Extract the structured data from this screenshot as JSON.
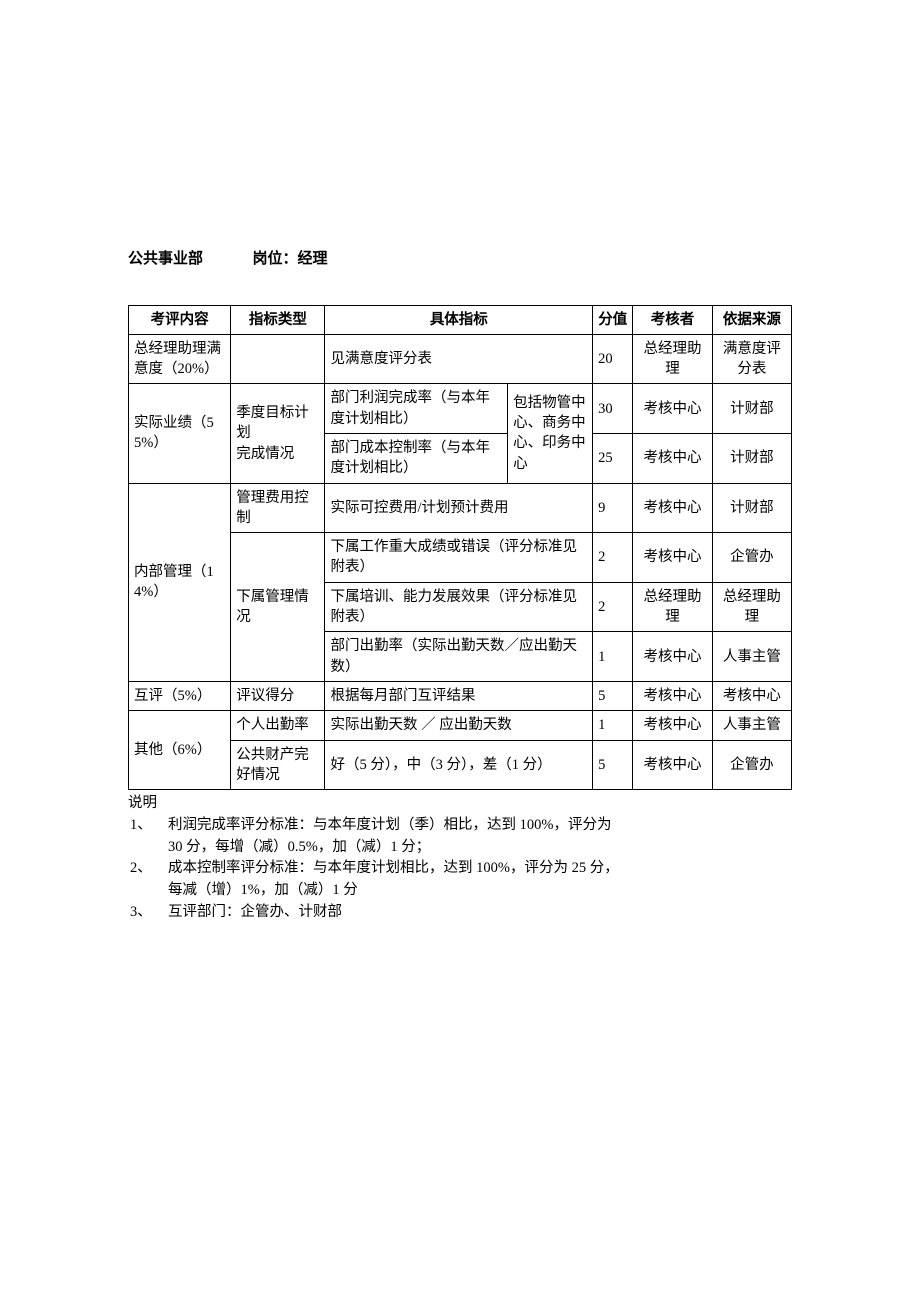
{
  "header": {
    "department": "公共事业部",
    "position_label": "岗位：经理"
  },
  "columns": {
    "c1": "考评内容",
    "c2": "指标类型",
    "c3": "具体指标",
    "c4": "分值",
    "c5": "考核者",
    "c6": "依据来源"
  },
  "col_widths": {
    "c1": "89px",
    "c2": "82px",
    "c3a": "159px",
    "c3b": "74px",
    "c4": "35px",
    "c5": "69px",
    "c6": "69px"
  },
  "rows": {
    "r1": {
      "content": "总经理助理满意度（20%）",
      "indicator_type": "",
      "metric": "见满意度评分表",
      "score": "20",
      "assessor": "总经理助理",
      "source": "满意度评分表"
    },
    "r2": {
      "content": "实际业绩（55%）",
      "indicator_type": "季度目标计划\n完成情况",
      "metric_a": "部门利润完成率（与本年度计划相比）",
      "metric_b_shared": "包括物管中心、商务中心、印务中心",
      "score": "30",
      "assessor": "考核中心",
      "source": "计财部"
    },
    "r3": {
      "metric_a": "部门成本控制率（与本年度计划相比）",
      "score": "25",
      "assessor": "考核中心",
      "source": "计财部"
    },
    "r4": {
      "content": "内部管理（14%）",
      "indicator_type": "管理费用控制",
      "metric": "实际可控费用/计划预计费用",
      "score": "9",
      "assessor": "考核中心",
      "source": "计财部"
    },
    "r5": {
      "indicator_type": "下属管理情况",
      "metric": "下属工作重大成绩或错误（评分标准见附表）",
      "score": "2",
      "assessor": "考核中心",
      "source": "企管办"
    },
    "r6": {
      "metric": "下属培训、能力发展效果（评分标准见附表）",
      "score": "2",
      "assessor": "总经理助理",
      "source": "总经理助理"
    },
    "r7": {
      "metric": "部门出勤率（实际出勤天数／应出勤天数）",
      "score": "1",
      "assessor": "考核中心",
      "source": "人事主管"
    },
    "r8": {
      "content": "互评（5%）",
      "indicator_type": "评议得分",
      "metric": "根据每月部门互评结果",
      "score": "5",
      "assessor": "考核中心",
      "source": "考核中心"
    },
    "r9": {
      "content": "其他（6%）",
      "indicator_type": "个人出勤率",
      "metric": "实际出勤天数 ／ 应出勤天数",
      "score": "1",
      "assessor": "考核中心",
      "source": "人事主管"
    },
    "r10": {
      "indicator_type": "公共财产完好情况",
      "metric": "好（5 分），中（3 分），差（1 分）",
      "score": "5",
      "assessor": "考核中心",
      "source": "企管办"
    }
  },
  "notes": {
    "title": "说明",
    "n1_num": "1、",
    "n1_l1": "利润完成率评分标准：与本年度计划（季）相比，达到 100%，评分为",
    "n1_l2": "30 分，每增（减）0.5%，加（减）1 分；",
    "n2_num": "2、",
    "n2_l1": "成本控制率评分标准：与本年度计划相比，达到 100%，评分为 25 分，",
    "n2_l2": "每减（增）1%，加（减）1 分",
    "n3_num": "3、",
    "n3_l1": "互评部门：企管办、计财部"
  }
}
